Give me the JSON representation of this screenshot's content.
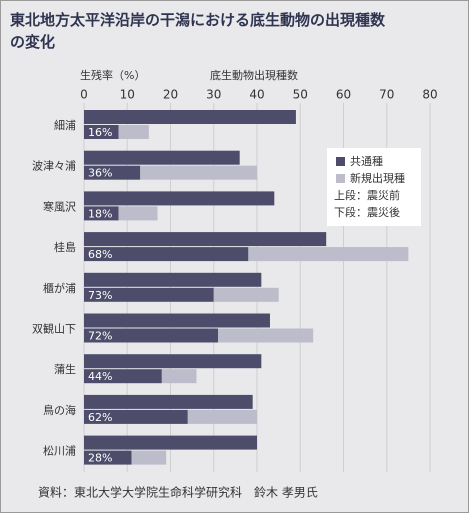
{
  "chart_data": {
    "type": "bar",
    "title": "東北地方太平洋沿岸の干潟における底生動物の出現種数の変化",
    "x_label_rate": "生残率（%）",
    "x_label": "底生動物出現種数",
    "categories": [
      "細浦",
      "波津々浦",
      "寒風沢",
      "桂島",
      "櫃が浦",
      "双観山下",
      "蒲生",
      "鳥の海",
      "松川浦"
    ],
    "before_values": [
      49,
      36,
      44,
      56,
      41,
      43,
      41,
      39,
      40
    ],
    "series": [
      {
        "name": "共通種",
        "color": "#4d4d6b",
        "values": [
          8,
          13,
          8,
          38,
          30,
          31,
          18,
          24,
          11
        ]
      },
      {
        "name": "新規出現種",
        "color": "#bcbcca",
        "values": [
          7,
          27,
          9,
          37,
          15,
          22,
          8,
          16,
          8
        ]
      }
    ],
    "survival_rate": {
      "values": [
        16,
        36,
        18,
        68,
        73,
        72,
        44,
        62,
        28
      ],
      "value_labels": [
        "16%",
        "36%",
        "18%",
        "68%",
        "73%",
        "72%",
        "44%",
        "62%",
        "28%"
      ]
    },
    "legend_notes": [
      "上段：震災前",
      "下段：震災後"
    ],
    "xlim": [
      0,
      80
    ],
    "xticks": [
      0,
      10,
      20,
      30,
      40,
      50,
      60,
      70,
      80
    ],
    "grid": true,
    "source": "資料：東北大学大学院生命科学研究科　鈴木 孝男氏"
  }
}
